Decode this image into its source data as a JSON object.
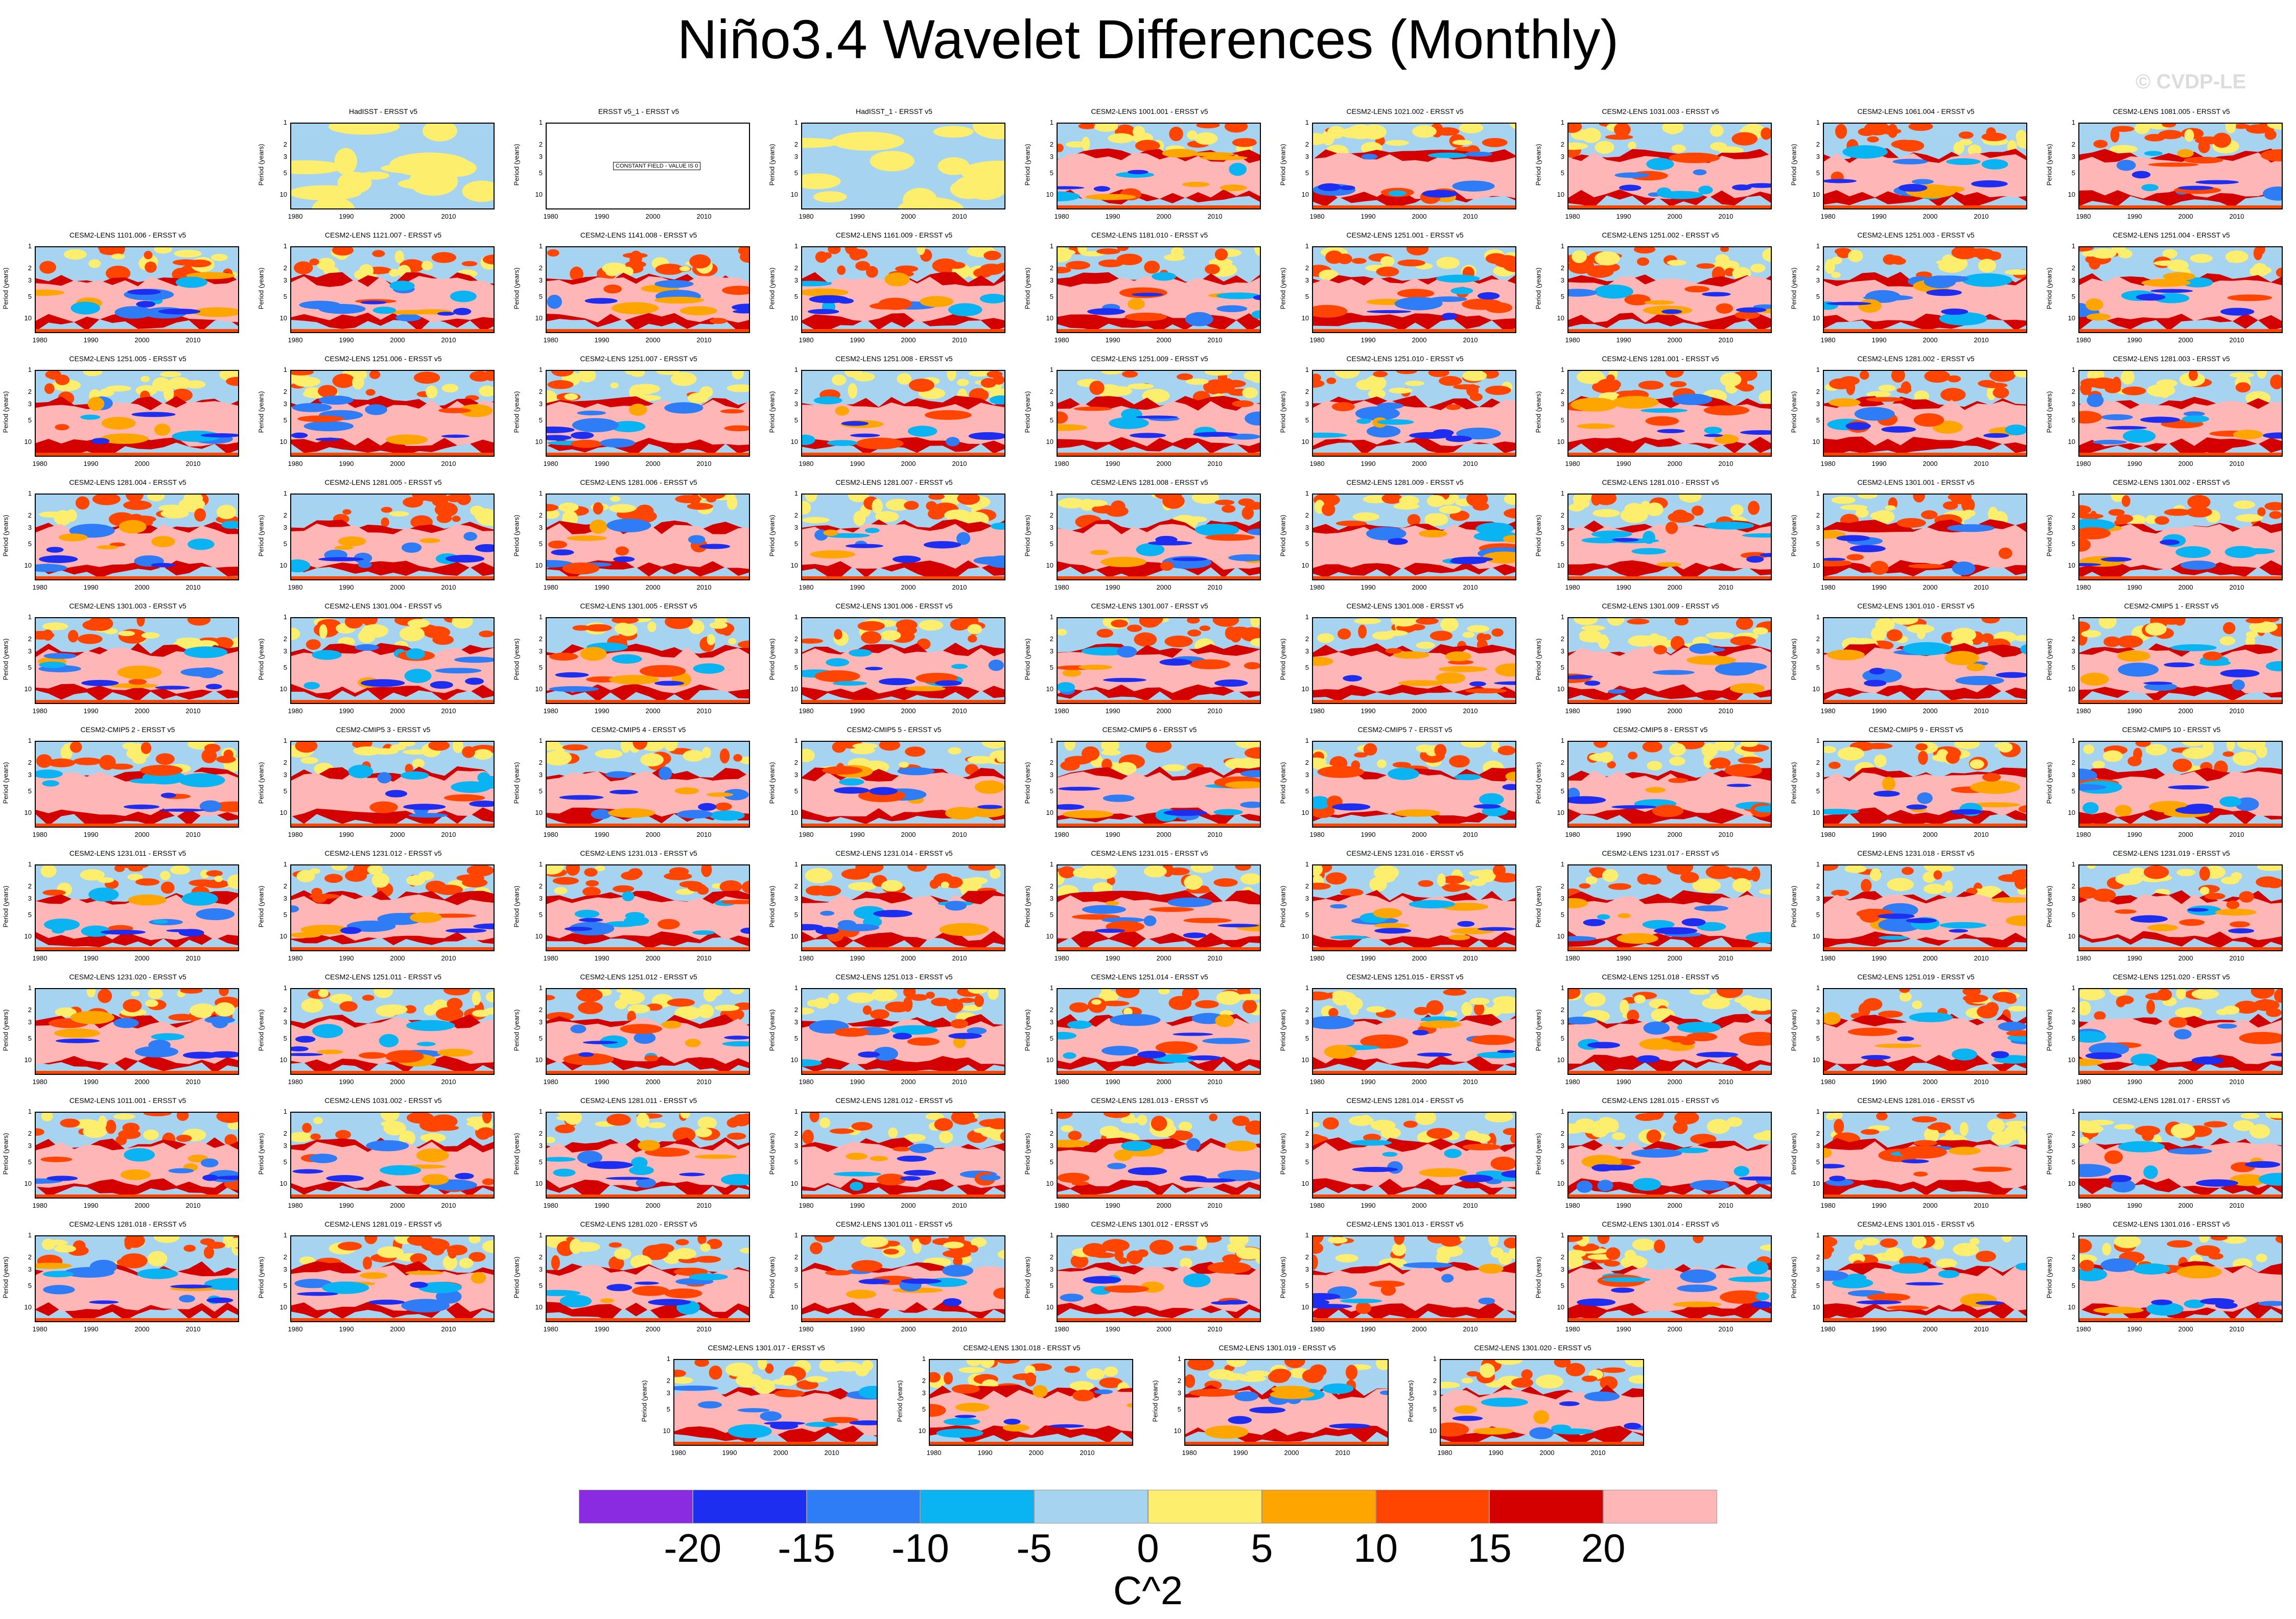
{
  "page": {
    "title": "Niño3.4 Wavelet Differences (Monthly)",
    "watermark": "© CVDP-LE",
    "ylabel": "Period (years)",
    "yticks": [
      "1",
      "2",
      "3",
      "5",
      "10"
    ],
    "xticks": [
      "1980",
      "1990",
      "2000",
      "2010"
    ],
    "constant_field_text": "CONSTANT FIELD - VALUE IS 0"
  },
  "chart_data": {
    "type": "heatmap",
    "title": "Niño3.4 Wavelet Differences (Monthly)",
    "xlabel": "",
    "ylabel": "Period (years)",
    "xlim": [
      1979,
      2019
    ],
    "ylim": [
      1,
      16
    ],
    "colorbar": {
      "units": "C^2",
      "levels": [
        -20,
        -15,
        -10,
        -5,
        0,
        5,
        10,
        15,
        20
      ],
      "labels": [
        "-20",
        "-15",
        "-10",
        "-5",
        "0",
        "5",
        "10",
        "15",
        "20"
      ],
      "colors": [
        "#8a2be2",
        "#1e2ef0",
        "#2e7cf6",
        "#0ab4f2",
        "#a6d4f0",
        "#fdee6e",
        "#ffa500",
        "#ff4500",
        "#d40000",
        "#ffb6b6"
      ]
    },
    "panels": [
      "HadISST - ERSST v5",
      "ERSST v5_1 - ERSST v5",
      "HadISST_1 - ERSST v5",
      "CESM2-LENS 1001.001 - ERSST v5",
      "CESM2-LENS 1021.002 - ERSST v5",
      "CESM2-LENS 1031.003 - ERSST v5",
      "CESM2-LENS 1061.004 - ERSST v5",
      "CESM2-LENS 1081.005 - ERSST v5",
      "CESM2-LENS 1101.006 - ERSST v5",
      "CESM2-LENS 1121.007 - ERSST v5",
      "CESM2-LENS 1141.008 - ERSST v5",
      "CESM2-LENS 1161.009 - ERSST v5",
      "CESM2-LENS 1181.010 - ERSST v5",
      "CESM2-LENS 1251.001 - ERSST v5",
      "CESM2-LENS 1251.002 - ERSST v5",
      "CESM2-LENS 1251.003 - ERSST v5",
      "CESM2-LENS 1251.004 - ERSST v5",
      "CESM2-LENS 1251.005 - ERSST v5",
      "CESM2-LENS 1251.006 - ERSST v5",
      "CESM2-LENS 1251.007 - ERSST v5",
      "CESM2-LENS 1251.008 - ERSST v5",
      "CESM2-LENS 1251.009 - ERSST v5",
      "CESM2-LENS 1251.010 - ERSST v5",
      "CESM2-LENS 1281.001 - ERSST v5",
      "CESM2-LENS 1281.002 - ERSST v5",
      "CESM2-LENS 1281.003 - ERSST v5",
      "CESM2-LENS 1281.004 - ERSST v5",
      "CESM2-LENS 1281.005 - ERSST v5",
      "CESM2-LENS 1281.006 - ERSST v5",
      "CESM2-LENS 1281.007 - ERSST v5",
      "CESM2-LENS 1281.008 - ERSST v5",
      "CESM2-LENS 1281.009 - ERSST v5",
      "CESM2-LENS 1281.010 - ERSST v5",
      "CESM2-LENS 1301.001 - ERSST v5",
      "CESM2-LENS 1301.002 - ERSST v5",
      "CESM2-LENS 1301.003 - ERSST v5",
      "CESM2-LENS 1301.004 - ERSST v5",
      "CESM2-LENS 1301.005 - ERSST v5",
      "CESM2-LENS 1301.006 - ERSST v5",
      "CESM2-LENS 1301.007 - ERSST v5",
      "CESM2-LENS 1301.008 - ERSST v5",
      "CESM2-LENS 1301.009 - ERSST v5",
      "CESM2-LENS 1301.010 - ERSST v5",
      "CESM2-CMIP5 1 - ERSST v5",
      "CESM2-CMIP5 2 - ERSST v5",
      "CESM2-CMIP5 3 - ERSST v5",
      "CESM2-CMIP5 4 - ERSST v5",
      "CESM2-CMIP5 5 - ERSST v5",
      "CESM2-CMIP5 6 - ERSST v5",
      "CESM2-CMIP5 7 - ERSST v5",
      "CESM2-CMIP5 8 - ERSST v5",
      "CESM2-CMIP5 9 - ERSST v5",
      "CESM2-CMIP5 10 - ERSST v5",
      "CESM2-LENS 1231.011 - ERSST v5",
      "CESM2-LENS 1231.012 - ERSST v5",
      "CESM2-LENS 1231.013 - ERSST v5",
      "CESM2-LENS 1231.014 - ERSST v5",
      "CESM2-LENS 1231.015 - ERSST v5",
      "CESM2-LENS 1231.016 - ERSST v5",
      "CESM2-LENS 1231.017 - ERSST v5",
      "CESM2-LENS 1231.018 - ERSST v5",
      "CESM2-LENS 1231.019 - ERSST v5",
      "CESM2-LENS 1231.020 - ERSST v5",
      "CESM2-LENS 1251.011 - ERSST v5",
      "CESM2-LENS 1251.012 - ERSST v5",
      "CESM2-LENS 1251.013 - ERSST v5",
      "CESM2-LENS 1251.014 - ERSST v5",
      "CESM2-LENS 1251.015 - ERSST v5",
      "CESM2-LENS 1251.018 - ERSST v5",
      "CESM2-LENS 1251.019 - ERSST v5",
      "CESM2-LENS 1251.020 - ERSST v5",
      "CESM2-LENS 1011.001 - ERSST v5",
      "CESM2-LENS 1031.002 - ERSST v5",
      "CESM2-LENS 1281.011 - ERSST v5",
      "CESM2-LENS 1281.012 - ERSST v5",
      "CESM2-LENS 1281.013 - ERSST v5",
      "CESM2-LENS 1281.014 - ERSST v5",
      "CESM2-LENS 1281.015 - ERSST v5",
      "CESM2-LENS 1281.016 - ERSST v5",
      "CESM2-LENS 1281.017 - ERSST v5",
      "CESM2-LENS 1281.018 - ERSST v5",
      "CESM2-LENS 1281.019 - ERSST v5",
      "CESM2-LENS 1281.020 - ERSST v5",
      "CESM2-LENS 1301.011 - ERSST v5",
      "CESM2-LENS 1301.012 - ERSST v5",
      "CESM2-LENS 1301.013 - ERSST v5",
      "CESM2-LENS 1301.014 - ERSST v5",
      "CESM2-LENS 1301.015 - ERSST v5",
      "CESM2-LENS 1301.016 - ERSST v5",
      "CESM2-LENS 1301.017 - ERSST v5",
      "CESM2-LENS 1301.018 - ERSST v5",
      "CESM2-LENS 1301.019 - ERSST v5",
      "CESM2-LENS 1301.020 - ERSST v5"
    ]
  }
}
